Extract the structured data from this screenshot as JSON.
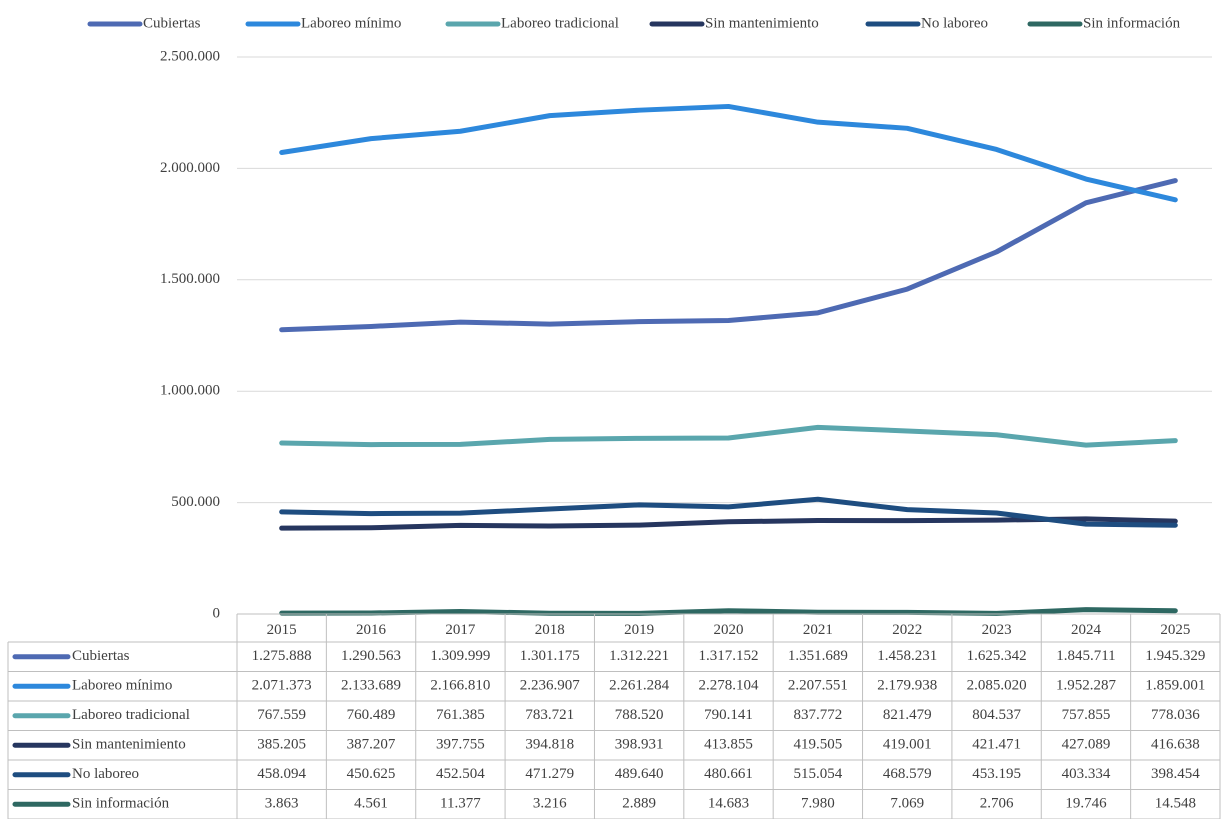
{
  "chart_data": {
    "type": "line",
    "categories": [
      "2015",
      "2016",
      "2017",
      "2018",
      "2019",
      "2020",
      "2021",
      "2022",
      "2023",
      "2024",
      "2025"
    ],
    "series": [
      {
        "name": "Cubiertas",
        "color": "#4e6ab3",
        "values": [
          1275888,
          1290563,
          1309999,
          1301175,
          1312221,
          1317152,
          1351689,
          1458231,
          1625342,
          1845711,
          1945329
        ],
        "value_labels": [
          "1.275.888",
          "1.290.563",
          "1.309.999",
          "1.301.175",
          "1.312.221",
          "1.317.152",
          "1.351.689",
          "1.458.231",
          "1.625.342",
          "1.845.711",
          "1.945.329"
        ]
      },
      {
        "name": "Laboreo mínimo",
        "color": "#2d88dc",
        "values": [
          2071373,
          2133689,
          2166810,
          2236907,
          2261284,
          2278104,
          2207551,
          2179938,
          2085020,
          1952287,
          1859001
        ],
        "value_labels": [
          "2.071.373",
          "2.133.689",
          "2.166.810",
          "2.236.907",
          "2.261.284",
          "2.278.104",
          "2.207.551",
          "2.179.938",
          "2.085.020",
          "1.952.287",
          "1.859.001"
        ]
      },
      {
        "name": "Laboreo tradicional",
        "color": "#5aa6ad",
        "values": [
          767559,
          760489,
          761385,
          783721,
          788520,
          790141,
          837772,
          821479,
          804537,
          757855,
          778036
        ],
        "value_labels": [
          "767.559",
          "760.489",
          "761.385",
          "783.721",
          "788.520",
          "790.141",
          "837.772",
          "821.479",
          "804.537",
          "757.855",
          "778.036"
        ]
      },
      {
        "name": "Sin mantenimiento",
        "color": "#26365f",
        "values": [
          385205,
          387207,
          397755,
          394818,
          398931,
          413855,
          419505,
          419001,
          421471,
          427089,
          416638
        ],
        "value_labels": [
          "385.205",
          "387.207",
          "397.755",
          "394.818",
          "398.931",
          "413.855",
          "419.505",
          "419.001",
          "421.471",
          "427.089",
          "416.638"
        ]
      },
      {
        "name": "No laboreo",
        "color": "#1e4d80",
        "values": [
          458094,
          450625,
          452504,
          471279,
          489640,
          480661,
          515054,
          468579,
          453195,
          403334,
          398454
        ],
        "value_labels": [
          "458.094",
          "450.625",
          "452.504",
          "471.279",
          "489.640",
          "480.661",
          "515.054",
          "468.579",
          "453.195",
          "403.334",
          "398.454"
        ]
      },
      {
        "name": "Sin información",
        "color": "#2e6862",
        "values": [
          3863,
          4561,
          11377,
          3216,
          2889,
          14683,
          7980,
          7069,
          2706,
          19746,
          14548
        ],
        "value_labels": [
          "3.863",
          "4.561",
          "11.377",
          "3.216",
          "2.889",
          "14.683",
          "7.980",
          "7.069",
          "2.706",
          "19.746",
          "14.548"
        ]
      }
    ],
    "ylim": [
      0,
      2500000
    ],
    "yticks": [
      0,
      {
        "value": 500000,
        "label": "500.000"
      },
      {
        "value": 1000000,
        "label": "1.000.000"
      },
      {
        "value": 1500000,
        "label": "1.500.000"
      },
      {
        "value": 2000000,
        "label": "2.000.000"
      },
      {
        "value": 2500000,
        "label": "2.500.000"
      }
    ],
    "grid": true
  }
}
